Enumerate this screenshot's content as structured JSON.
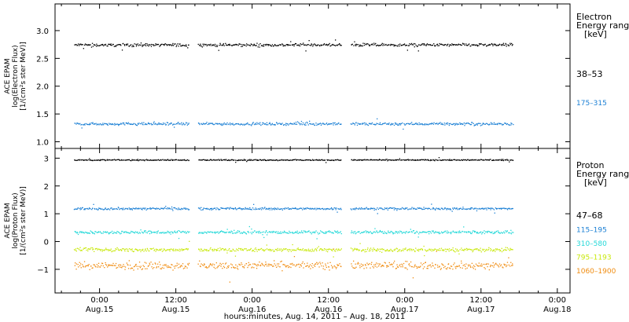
{
  "chart_data": [
    {
      "type": "scatter",
      "panel": "electron",
      "ylabel_lines": [
        "ACE EPAM",
        "log(Electron Flux)",
        "[1/(cm²s ster MeV)]"
      ],
      "ylim": [
        0.88,
        3.48
      ],
      "yticks": [
        1.0,
        1.5,
        2.0,
        2.5,
        3.0
      ],
      "ytick_labels": [
        "1.0",
        "1.5",
        "2.0",
        "2.5",
        "3.0"
      ],
      "legend_title": [
        "Electron",
        "Energy range",
        "[keV]"
      ],
      "series": [
        {
          "name": "38–53",
          "color": "#000000",
          "level": 2.75,
          "scatter": 0.04
        },
        {
          "name": "175–315",
          "color": "#1a7fd4",
          "level": 1.33,
          "scatter": 0.035
        }
      ]
    },
    {
      "type": "scatter",
      "panel": "proton",
      "ylabel_lines": [
        "ACE EPAM",
        "log(Proton Flux)",
        "[1/(cm²s ster MeV)]"
      ],
      "ylim": [
        -1.85,
        3.35
      ],
      "yticks": [
        -1,
        0,
        1,
        2,
        3
      ],
      "ytick_labels": [
        "−1",
        "0",
        "1",
        "2",
        "3"
      ],
      "legend_title": [
        "Proton",
        "Energy range",
        "[keV]"
      ],
      "series": [
        {
          "name": "47–68",
          "color": "#000000",
          "level": 2.95,
          "scatter": 0.03
        },
        {
          "name": "115–195",
          "color": "#1a7fd4",
          "level": 1.2,
          "scatter": 0.06
        },
        {
          "name": "310–580",
          "color": "#22d8d8",
          "level": 0.35,
          "scatter": 0.08
        },
        {
          "name": "795–1193",
          "color": "#c8e80a",
          "level": -0.28,
          "scatter": 0.1
        },
        {
          "name": "1060–1900",
          "color": "#f08c10",
          "level": -0.85,
          "scatter": 0.2
        }
      ]
    }
  ],
  "x_axis": {
    "xlabel": "hours:minutes, Aug. 14, 2011 – Aug. 18, 2011",
    "ticks": [
      {
        "time": "0:00",
        "date": "Aug.15"
      },
      {
        "time": "12:00",
        "date": "Aug.15"
      },
      {
        "time": "0:00",
        "date": "Aug.16"
      },
      {
        "time": "12:00",
        "date": "Aug.16"
      },
      {
        "time": "0:00",
        "date": "Aug.17"
      },
      {
        "time": "12:00",
        "date": "Aug.17"
      },
      {
        "time": "0:00",
        "date": "Aug.18"
      }
    ],
    "segments": [
      [
        "Aug. 14 20:00",
        "Aug. 15 14:00"
      ],
      [
        "Aug. 15 15:30",
        "Aug. 16 14:00"
      ],
      [
        "Aug. 16 15:30",
        "Aug. 17 17:00"
      ]
    ]
  }
}
